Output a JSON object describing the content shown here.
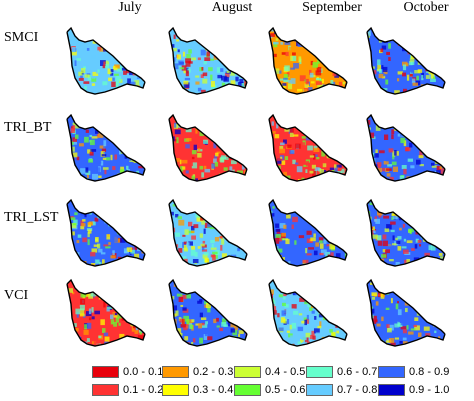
{
  "columns": [
    "July",
    "August",
    "September",
    "October"
  ],
  "rows": [
    "SMCI",
    "TRI_BT",
    "TRI_LST",
    "VCI"
  ],
  "legend": [
    {
      "label": "0.0 - 0.1",
      "color": "#e8000b"
    },
    {
      "label": "0.1 - 0.2",
      "color": "#ff3333"
    },
    {
      "label": "0.2 - 0.3",
      "color": "#ff9900"
    },
    {
      "label": "0.3 - 0.4",
      "color": "#ffff00"
    },
    {
      "label": "0.4 - 0.5",
      "color": "#ccff33"
    },
    {
      "label": "0.5 - 0.6",
      "color": "#66ff33"
    },
    {
      "label": "0.6 - 0.7",
      "color": "#66ffcc"
    },
    {
      "label": "0.7 - 0.8",
      "color": "#66ccff"
    },
    {
      "label": "0.8 - 0.9",
      "color": "#3366ff"
    },
    {
      "label": "0.9 - 1.0",
      "color": "#0000cc"
    }
  ],
  "panel_dominant_colors": [
    [
      "#66ccff",
      "#66ccff",
      "#ff9900",
      "#3366ff"
    ],
    [
      "#3366ff",
      "#ff3333",
      "#ff3333",
      "#3366ff"
    ],
    [
      "#3366ff",
      "#66ccff",
      "#3366ff",
      "#3366ff"
    ],
    [
      "#ff3333",
      "#3366ff",
      "#66ccff",
      "#3366ff"
    ]
  ],
  "coastline_color": "#000000"
}
